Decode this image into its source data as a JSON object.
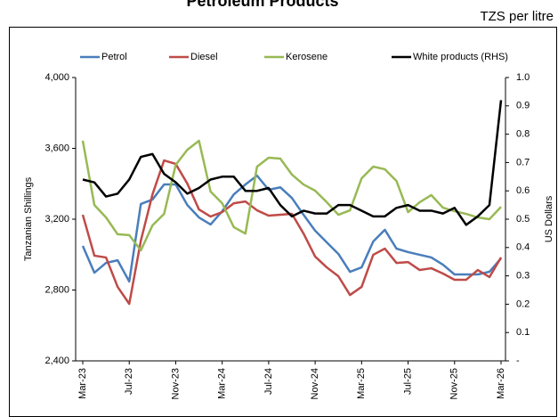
{
  "chart_data": {
    "type": "line",
    "title": "Petroleum Products",
    "subtitle": "TZS per litre",
    "y_label": "Tanzanian Shillings",
    "y2_label": "US Dollars",
    "categories": [
      "Mar-23",
      null,
      null,
      null,
      "Jul-23",
      null,
      null,
      null,
      "Nov-23",
      null,
      null,
      null,
      "Mar-24",
      null,
      null,
      null,
      "Jul-24",
      null,
      null,
      null,
      "Nov-24",
      null,
      null,
      null,
      "Mar-25",
      null,
      null,
      null,
      "Jul-25",
      null,
      null,
      null,
      "Nov-25",
      null,
      null,
      null,
      "Mar-26"
    ],
    "ylim": [
      2400,
      4000
    ],
    "yticks": [
      {
        "value": 2400,
        "label": "2,400"
      },
      {
        "value": 2800,
        "label": "2,800"
      },
      {
        "value": 3200,
        "label": "3,200"
      },
      {
        "value": 3600,
        "label": "3,600"
      },
      {
        "value": 4000,
        "label": "4,000"
      }
    ],
    "y2lim": [
      0,
      1
    ],
    "y2ticks": [
      {
        "value": 0,
        "label": "-"
      },
      0.1,
      0.2,
      0.3,
      0.4,
      0.5,
      0.6,
      0.7,
      0.8,
      0.9,
      {
        "value": 1,
        "label": "1.0"
      }
    ],
    "legend": "top",
    "series": [
      {
        "name": "Petrol",
        "color": "#4a7ebb",
        "values": [
          3049,
          2898,
          2953,
          2968,
          2848,
          3286,
          3311,
          3396,
          3396,
          3280,
          3210,
          3170,
          3245,
          3340,
          3396,
          3446,
          3366,
          3380,
          3320,
          3225,
          3135,
          3069,
          3004,
          2903,
          2928,
          3074,
          3140,
          3034,
          3014,
          2999,
          2984,
          2943,
          2888,
          2888,
          2888,
          2903,
          2979
        ]
      },
      {
        "name": "Diesel",
        "color": "#be4b48",
        "values": [
          3225,
          2994,
          2984,
          2818,
          2722,
          3079,
          3340,
          3532,
          3512,
          3401,
          3255,
          3215,
          3240,
          3290,
          3300,
          3250,
          3220,
          3225,
          3230,
          3119,
          2989,
          2928,
          2878,
          2772,
          2818,
          2999,
          3034,
          2953,
          2958,
          2913,
          2923,
          2893,
          2858,
          2858,
          2913,
          2873,
          2984
        ]
      },
      {
        "name": "Kerosene",
        "color": "#98b954",
        "values": [
          3643,
          3280,
          3210,
          3115,
          3110,
          3024,
          3165,
          3230,
          3507,
          3592,
          3643,
          3356,
          3290,
          3155,
          3119,
          3497,
          3547,
          3542,
          3452,
          3396,
          3361,
          3296,
          3225,
          3250,
          3431,
          3497,
          3482,
          3416,
          3240,
          3296,
          3336,
          3265,
          3245,
          3230,
          3210,
          3200,
          3270
        ]
      },
      {
        "name": "White products (RHS)",
        "color": "#000000",
        "axis": "y2",
        "values": [
          0.64,
          0.63,
          0.58,
          0.59,
          0.64,
          0.72,
          0.73,
          0.66,
          0.63,
          0.59,
          0.61,
          0.64,
          0.65,
          0.65,
          0.6,
          0.6,
          0.61,
          0.55,
          0.51,
          0.53,
          0.52,
          0.52,
          0.55,
          0.55,
          0.53,
          0.51,
          0.51,
          0.54,
          0.55,
          0.53,
          0.53,
          0.52,
          0.54,
          0.48,
          0.51,
          0.55,
          0.92
        ]
      }
    ]
  }
}
